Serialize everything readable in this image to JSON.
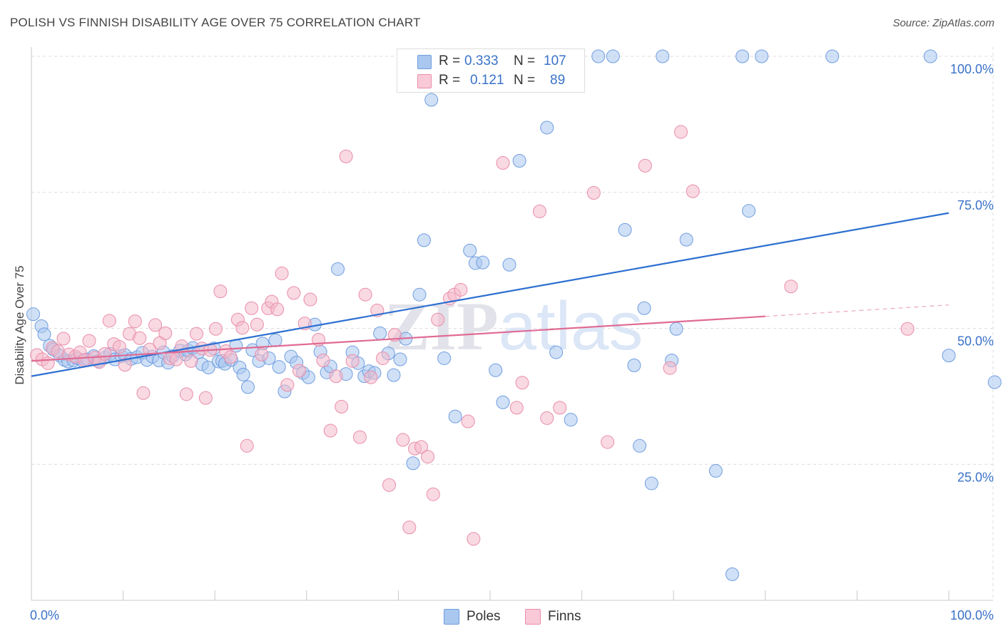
{
  "title": "POLISH VS FINNISH DISABILITY AGE OVER 75 CORRELATION CHART",
  "source": "Source: ZipAtlas.com",
  "watermark": "ZIPatlas",
  "legend": {
    "r_label": "R =",
    "n_label": "N =",
    "rows": [
      {
        "r": "0.333",
        "n": "107"
      },
      {
        "r": "0.121",
        "n": "89"
      }
    ]
  },
  "chart_data": {
    "type": "scatter",
    "title": "POLISH VS FINNISH DISABILITY AGE OVER 75 CORRELATION CHART",
    "xlabel": "",
    "ylabel": "Disability Age Over 75",
    "xlim": [
      0,
      100
    ],
    "ylim": [
      0,
      100
    ],
    "x_tick_labels": [
      "0.0%",
      "100.0%"
    ],
    "y_ticks": [
      25,
      50,
      75,
      100
    ],
    "y_tick_labels": [
      "25.0%",
      "50.0%",
      "75.0%",
      "100.0%"
    ],
    "grid": true,
    "legend_position": "bottom-center",
    "series": [
      {
        "name": "Poles",
        "color": "#a9c7ef",
        "edge": "#6f9ee0",
        "line_color": "#2d6fd0",
        "trend": {
          "x": [
            0,
            100
          ],
          "y": [
            41.2,
            71.2
          ]
        },
        "points": [
          [
            0.2,
            52.6
          ],
          [
            1.1,
            50.4
          ],
          [
            1.4,
            48.9
          ],
          [
            2.0,
            46.8
          ],
          [
            2.4,
            46.1
          ],
          [
            3.1,
            45.0
          ],
          [
            3.6,
            44.2
          ],
          [
            4.0,
            43.9
          ],
          [
            4.6,
            44.1
          ],
          [
            5.0,
            44.5
          ],
          [
            5.6,
            44.0
          ],
          [
            6.1,
            44.3
          ],
          [
            6.8,
            44.9
          ],
          [
            7.3,
            44.0
          ],
          [
            8.0,
            44.6
          ],
          [
            8.6,
            45.3
          ],
          [
            9.1,
            44.3
          ],
          [
            9.8,
            44.9
          ],
          [
            10.2,
            45.1
          ],
          [
            10.9,
            44.4
          ],
          [
            11.5,
            44.7
          ],
          [
            12.1,
            45.5
          ],
          [
            12.6,
            44.2
          ],
          [
            13.2,
            44.8
          ],
          [
            13.9,
            44.1
          ],
          [
            14.4,
            45.6
          ],
          [
            14.9,
            43.7
          ],
          [
            15.4,
            44.9
          ],
          [
            16.2,
            45.9
          ],
          [
            16.8,
            45.2
          ],
          [
            17.1,
            45.9
          ],
          [
            17.6,
            46.4
          ],
          [
            18.2,
            45.6
          ],
          [
            18.6,
            43.4
          ],
          [
            19.3,
            42.8
          ],
          [
            19.9,
            46.3
          ],
          [
            20.4,
            43.9
          ],
          [
            20.8,
            44.0
          ],
          [
            21.1,
            43.5
          ],
          [
            21.8,
            44.2
          ],
          [
            22.3,
            46.8
          ],
          [
            22.7,
            42.8
          ],
          [
            23.1,
            41.5
          ],
          [
            23.6,
            39.2
          ],
          [
            24.1,
            46.0
          ],
          [
            24.8,
            44.0
          ],
          [
            25.2,
            47.2
          ],
          [
            25.9,
            44.5
          ],
          [
            26.6,
            47.8
          ],
          [
            27.0,
            42.9
          ],
          [
            27.6,
            38.4
          ],
          [
            28.3,
            44.8
          ],
          [
            28.9,
            43.7
          ],
          [
            29.6,
            41.8
          ],
          [
            30.2,
            41.0
          ],
          [
            30.9,
            50.7
          ],
          [
            31.5,
            45.7
          ],
          [
            32.2,
            41.9
          ],
          [
            32.6,
            43.0
          ],
          [
            33.4,
            60.9
          ],
          [
            34.3,
            41.6
          ],
          [
            35.0,
            45.6
          ],
          [
            35.6,
            43.6
          ],
          [
            36.3,
            41.2
          ],
          [
            36.8,
            42.1
          ],
          [
            37.4,
            41.8
          ],
          [
            38.0,
            49.1
          ],
          [
            38.9,
            45.4
          ],
          [
            39.5,
            41.4
          ],
          [
            40.2,
            44.3
          ],
          [
            40.8,
            48.1
          ],
          [
            41.6,
            25.2
          ],
          [
            42.3,
            56.2
          ],
          [
            42.8,
            66.2
          ],
          [
            43.6,
            92.0
          ],
          [
            45.0,
            44.5
          ],
          [
            46.2,
            33.8
          ],
          [
            46.7,
            100.0
          ],
          [
            47.8,
            64.3
          ],
          [
            48.4,
            62.0
          ],
          [
            49.2,
            62.1
          ],
          [
            50.6,
            42.3
          ],
          [
            51.4,
            36.4
          ],
          [
            52.1,
            61.7
          ],
          [
            53.2,
            80.8
          ],
          [
            54.2,
            100.0
          ],
          [
            56.2,
            86.9
          ],
          [
            57.2,
            45.6
          ],
          [
            57.8,
            100.0
          ],
          [
            58.8,
            33.2
          ],
          [
            61.8,
            100.0
          ],
          [
            63.4,
            100.0
          ],
          [
            64.7,
            68.1
          ],
          [
            65.7,
            43.2
          ],
          [
            66.3,
            28.4
          ],
          [
            66.8,
            53.7
          ],
          [
            67.6,
            21.5
          ],
          [
            68.8,
            100.0
          ],
          [
            69.8,
            44.1
          ],
          [
            70.3,
            49.9
          ],
          [
            71.4,
            66.3
          ],
          [
            74.6,
            23.8
          ],
          [
            76.4,
            4.8
          ],
          [
            77.5,
            100.0
          ],
          [
            78.2,
            71.6
          ],
          [
            79.6,
            100.0
          ],
          [
            87.3,
            100.0
          ],
          [
            98.0,
            100.0
          ],
          [
            100.0,
            45.0
          ],
          [
            105.0,
            40.1
          ]
        ]
      },
      {
        "name": "Finns",
        "color": "#f4b9cb",
        "edge": "#e98dab",
        "line_color": "#e06b94",
        "trend": {
          "x": [
            0,
            80
          ],
          "y": [
            44.0,
            52.2
          ]
        },
        "trend_dashed": {
          "x": [
            80,
            100
          ],
          "y": [
            52.2,
            54.3
          ]
        },
        "points": [
          [
            0.6,
            45.1
          ],
          [
            1.2,
            44.3
          ],
          [
            1.8,
            43.6
          ],
          [
            2.3,
            46.4
          ],
          [
            2.9,
            45.8
          ],
          [
            3.5,
            48.1
          ],
          [
            4.1,
            45.2
          ],
          [
            4.8,
            44.8
          ],
          [
            5.3,
            45.6
          ],
          [
            5.8,
            44.2
          ],
          [
            6.3,
            47.7
          ],
          [
            6.9,
            44.6
          ],
          [
            7.4,
            43.8
          ],
          [
            8.0,
            45.3
          ],
          [
            8.5,
            51.4
          ],
          [
            9.0,
            47.1
          ],
          [
            9.6,
            46.6
          ],
          [
            10.2,
            43.3
          ],
          [
            10.7,
            49.0
          ],
          [
            11.3,
            51.3
          ],
          [
            11.8,
            48.2
          ],
          [
            12.2,
            38.1
          ],
          [
            12.9,
            46.1
          ],
          [
            13.5,
            50.6
          ],
          [
            14.0,
            47.3
          ],
          [
            14.6,
            49.1
          ],
          [
            15.1,
            44.5
          ],
          [
            15.8,
            44.3
          ],
          [
            16.4,
            46.7
          ],
          [
            16.9,
            37.9
          ],
          [
            17.4,
            44.0
          ],
          [
            18.0,
            49.0
          ],
          [
            18.6,
            46.3
          ],
          [
            19.0,
            37.2
          ],
          [
            19.5,
            46.0
          ],
          [
            20.1,
            49.9
          ],
          [
            20.6,
            56.8
          ],
          [
            21.2,
            45.8
          ],
          [
            21.7,
            44.7
          ],
          [
            22.5,
            51.6
          ],
          [
            23.0,
            50.1
          ],
          [
            23.5,
            28.4
          ],
          [
            24.0,
            53.7
          ],
          [
            24.6,
            50.7
          ],
          [
            25.1,
            45.2
          ],
          [
            25.8,
            53.7
          ],
          [
            26.2,
            54.9
          ],
          [
            26.8,
            53.5
          ],
          [
            27.3,
            60.1
          ],
          [
            27.9,
            39.6
          ],
          [
            28.6,
            56.5
          ],
          [
            29.2,
            42.2
          ],
          [
            29.8,
            50.9
          ],
          [
            30.4,
            55.3
          ],
          [
            31.3,
            47.9
          ],
          [
            31.8,
            44.1
          ],
          [
            32.6,
            31.2
          ],
          [
            33.2,
            41.2
          ],
          [
            33.8,
            35.6
          ],
          [
            34.3,
            81.6
          ],
          [
            35.0,
            44.0
          ],
          [
            35.8,
            30.0
          ],
          [
            36.4,
            56.2
          ],
          [
            37.0,
            41.0
          ],
          [
            37.7,
            53.3
          ],
          [
            38.3,
            44.5
          ],
          [
            39.0,
            21.2
          ],
          [
            39.6,
            48.8
          ],
          [
            40.5,
            29.5
          ],
          [
            41.2,
            13.4
          ],
          [
            41.8,
            27.9
          ],
          [
            42.5,
            28.2
          ],
          [
            43.2,
            26.4
          ],
          [
            43.8,
            19.5
          ],
          [
            44.3,
            51.6
          ],
          [
            45.6,
            55.5
          ],
          [
            46.1,
            56.2
          ],
          [
            46.8,
            57.1
          ],
          [
            47.6,
            32.9
          ],
          [
            48.2,
            11.3
          ],
          [
            51.4,
            80.4
          ],
          [
            52.9,
            35.4
          ],
          [
            53.5,
            40.0
          ],
          [
            55.4,
            71.5
          ],
          [
            56.2,
            33.5
          ],
          [
            57.6,
            35.4
          ],
          [
            61.3,
            74.9
          ],
          [
            62.8,
            29.1
          ],
          [
            66.9,
            79.9
          ],
          [
            69.6,
            42.7
          ],
          [
            70.8,
            86.1
          ],
          [
            72.1,
            75.2
          ],
          [
            82.8,
            57.7
          ],
          [
            95.5,
            49.9
          ]
        ]
      }
    ]
  },
  "bottom_legend": [
    {
      "name": "Poles"
    },
    {
      "name": "Finns"
    }
  ]
}
